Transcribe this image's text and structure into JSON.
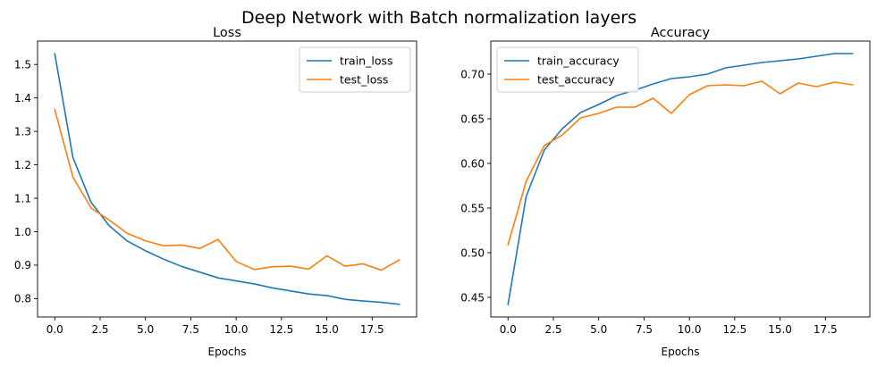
{
  "figure": {
    "title": "Deep Network with Batch normalization layers"
  },
  "chart_data": [
    {
      "type": "line",
      "title": "Loss",
      "xlabel": "Epochs",
      "ylabel": "",
      "xlim": [
        -0.95,
        19.95
      ],
      "ylim": [
        0.745,
        1.57
      ],
      "xticks": [
        0.0,
        2.5,
        5.0,
        7.5,
        10.0,
        12.5,
        15.0,
        17.5
      ],
      "xtick_labels": [
        "0.0",
        "2.5",
        "5.0",
        "7.5",
        "10.0",
        "12.5",
        "15.0",
        "17.5"
      ],
      "yticks": [
        0.8,
        0.9,
        1.0,
        1.1,
        1.2,
        1.3,
        1.4,
        1.5
      ],
      "ytick_labels": [
        "0.8",
        "0.9",
        "1.0",
        "1.1",
        "1.2",
        "1.3",
        "1.4",
        "1.5"
      ],
      "legend": "top-right",
      "grid": false,
      "x": [
        0,
        1,
        2,
        3,
        4,
        5,
        6,
        7,
        8,
        9,
        10,
        11,
        12,
        13,
        14,
        15,
        16,
        17,
        18,
        19
      ],
      "series": [
        {
          "name": "train_loss",
          "color": "#1f77b4",
          "values": [
            1.532,
            1.222,
            1.088,
            1.018,
            0.972,
            0.943,
            0.918,
            0.896,
            0.879,
            0.862,
            0.853,
            0.844,
            0.832,
            0.823,
            0.814,
            0.809,
            0.798,
            0.793,
            0.789,
            0.783
          ]
        },
        {
          "name": "test_loss",
          "color": "#ff7f0e",
          "values": [
            1.365,
            1.163,
            1.071,
            1.035,
            0.995,
            0.973,
            0.958,
            0.96,
            0.95,
            0.977,
            0.911,
            0.887,
            0.895,
            0.897,
            0.888,
            0.928,
            0.897,
            0.904,
            0.885,
            0.916
          ]
        }
      ]
    },
    {
      "type": "line",
      "title": "Accuracy",
      "xlabel": "Epochs",
      "ylabel": "",
      "xlim": [
        -0.95,
        19.95
      ],
      "ylim": [
        0.428,
        0.737
      ],
      "xticks": [
        0.0,
        2.5,
        5.0,
        7.5,
        10.0,
        12.5,
        15.0,
        17.5
      ],
      "xtick_labels": [
        "0.0",
        "2.5",
        "5.0",
        "7.5",
        "10.0",
        "12.5",
        "15.0",
        "17.5"
      ],
      "yticks": [
        0.45,
        0.5,
        0.55,
        0.6,
        0.65,
        0.7
      ],
      "ytick_labels": [
        "0.45",
        "0.50",
        "0.55",
        "0.60",
        "0.65",
        "0.70"
      ],
      "legend": "top-left",
      "grid": false,
      "x": [
        0,
        1,
        2,
        3,
        4,
        5,
        6,
        7,
        8,
        9,
        10,
        11,
        12,
        13,
        14,
        15,
        16,
        17,
        18,
        19
      ],
      "series": [
        {
          "name": "train_accuracy",
          "color": "#1f77b4",
          "values": [
            0.442,
            0.563,
            0.615,
            0.639,
            0.657,
            0.666,
            0.676,
            0.682,
            0.689,
            0.695,
            0.697,
            0.7,
            0.707,
            0.71,
            0.713,
            0.715,
            0.717,
            0.72,
            0.723,
            0.723
          ]
        },
        {
          "name": "test_accuracy",
          "color": "#ff7f0e",
          "values": [
            0.509,
            0.58,
            0.62,
            0.632,
            0.651,
            0.656,
            0.663,
            0.663,
            0.673,
            0.656,
            0.677,
            0.687,
            0.688,
            0.687,
            0.692,
            0.678,
            0.69,
            0.686,
            0.691,
            0.688
          ]
        }
      ]
    }
  ]
}
